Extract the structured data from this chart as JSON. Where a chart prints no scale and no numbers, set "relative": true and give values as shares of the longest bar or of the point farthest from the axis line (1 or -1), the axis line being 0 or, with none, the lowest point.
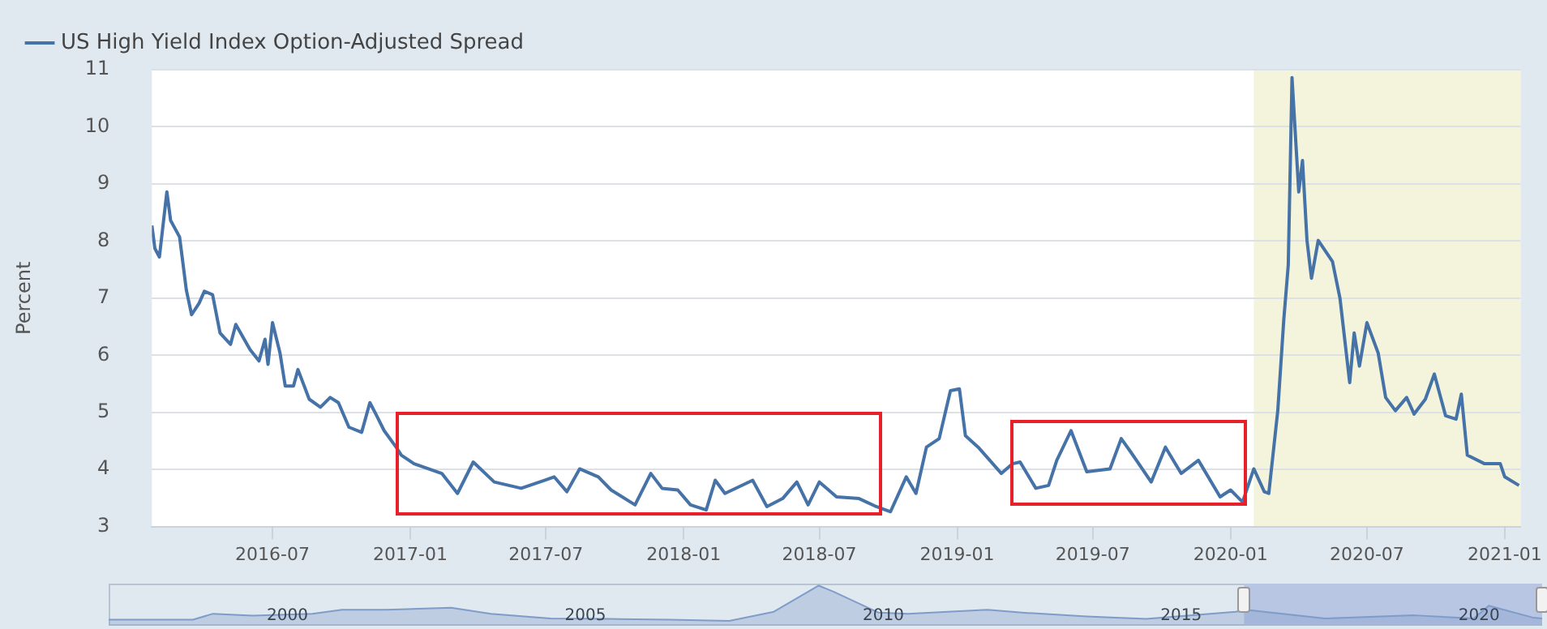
{
  "chart_data": [
    {
      "type": "line",
      "ylabel": "Percent",
      "legend": "top left",
      "grid": "y",
      "marker": "none",
      "line_style": "solid",
      "xlim": [
        "2016-01-22",
        "2021-01-22"
      ],
      "xticks": [
        "2016-07",
        "2017-01",
        "2017-07",
        "2018-01",
        "2018-07",
        "2019-01",
        "2019-07",
        "2020-01",
        "2020-07",
        "2021-01"
      ],
      "ylim": [
        3,
        11
      ],
      "yticks": [
        3,
        4,
        5,
        6,
        7,
        8,
        9,
        10,
        11
      ],
      "bands": [
        {
          "axis": "x",
          "from": "2020-02-01",
          "to": "2021-01-22",
          "color": "#f4f4dc"
        }
      ],
      "x": [
        "2016-01-22",
        "2016-01-26",
        "2016-02-01",
        "2016-02-11",
        "2016-02-16",
        "2016-02-28",
        "2016-03-08",
        "2016-03-15",
        "2016-03-25",
        "2016-04-01",
        "2016-04-12",
        "2016-04-22",
        "2016-05-06",
        "2016-05-13",
        "2016-06-01",
        "2016-06-13",
        "2016-06-21",
        "2016-06-25",
        "2016-07-01",
        "2016-07-11",
        "2016-07-18",
        "2016-07-29",
        "2016-08-04",
        "2016-08-19",
        "2016-09-03",
        "2016-09-16",
        "2016-09-27",
        "2016-10-11",
        "2016-10-28",
        "2016-11-08",
        "2016-11-16",
        "2016-11-27",
        "2016-12-13",
        "2016-12-20",
        "2017-01-06",
        "2017-02-12",
        "2017-03-05",
        "2017-03-26",
        "2017-04-23",
        "2017-05-29",
        "2017-06-29",
        "2017-07-12",
        "2017-07-29",
        "2017-08-15",
        "2017-09-09",
        "2017-09-26",
        "2017-10-28",
        "2017-11-18",
        "2017-12-03",
        "2017-12-24",
        "2018-01-10",
        "2018-01-31",
        "2018-02-12",
        "2018-02-25",
        "2018-04-03",
        "2018-04-22",
        "2018-05-13",
        "2018-06-01",
        "2018-06-16",
        "2018-07-01",
        "2018-07-24",
        "2018-08-23",
        "2018-09-15",
        "2018-10-04",
        "2018-10-25",
        "2018-11-07",
        "2018-11-21",
        "2018-12-08",
        "2018-12-23",
        "2019-01-04",
        "2019-01-12",
        "2019-01-29",
        "2019-03-01",
        "2019-03-16",
        "2019-03-26",
        "2019-04-16",
        "2019-05-03",
        "2019-05-14",
        "2019-06-02",
        "2019-06-23",
        "2019-07-24",
        "2019-08-08",
        "2019-08-21",
        "2019-09-17",
        "2019-10-06",
        "2019-10-27",
        "2019-11-19",
        "2019-12-18",
        "2020-01-01",
        "2020-01-17",
        "2020-02-01",
        "2020-02-15",
        "2020-02-21",
        "2020-03-04",
        "2020-03-12",
        "2020-03-18",
        "2020-03-23",
        "2020-04-01",
        "2020-04-06",
        "2020-04-12",
        "2020-04-18",
        "2020-04-27",
        "2020-05-16",
        "2020-05-26",
        "2020-06-08",
        "2020-06-14",
        "2020-06-21",
        "2020-07-01",
        "2020-07-16",
        "2020-07-26",
        "2020-08-08",
        "2020-08-23",
        "2020-09-02",
        "2020-09-17",
        "2020-09-29",
        "2020-10-14",
        "2020-10-28",
        "2020-11-04",
        "2020-11-12",
        "2020-12-05",
        "2020-12-26",
        "2021-01-01",
        "2021-01-20"
      ],
      "series": [
        {
          "name": "US High Yield Index Option-Adjusted Spread",
          "color": "#4572a7",
          "values": [
            8.27,
            7.87,
            7.72,
            8.86,
            8.36,
            8.07,
            7.14,
            6.71,
            6.91,
            7.12,
            7.06,
            6.39,
            6.19,
            6.54,
            6.1,
            5.9,
            6.28,
            5.84,
            6.57,
            6.04,
            5.46,
            5.46,
            5.75,
            5.23,
            5.09,
            5.26,
            5.17,
            4.74,
            4.65,
            5.17,
            4.97,
            4.68,
            4.39,
            4.25,
            4.1,
            3.93,
            3.58,
            4.13,
            3.78,
            3.67,
            3.81,
            3.87,
            3.61,
            4.01,
            3.87,
            3.64,
            3.38,
            3.93,
            3.67,
            3.64,
            3.38,
            3.29,
            3.81,
            3.58,
            3.81,
            3.35,
            3.49,
            3.78,
            3.38,
            3.78,
            3.52,
            3.49,
            3.35,
            3.26,
            3.87,
            3.58,
            4.39,
            4.54,
            5.38,
            5.41,
            4.59,
            4.39,
            3.93,
            4.1,
            4.13,
            3.67,
            3.72,
            4.16,
            4.68,
            3.96,
            4.01,
            4.54,
            4.3,
            3.78,
            4.39,
            3.93,
            4.16,
            3.52,
            3.64,
            3.43,
            4.01,
            3.61,
            3.58,
            5.03,
            6.62,
            7.58,
            10.86,
            8.86,
            9.41,
            8.01,
            7.35,
            8.01,
            7.64,
            7,
            5.52,
            6.39,
            5.81,
            6.57,
            6.04,
            5.26,
            5.03,
            5.26,
            4.97,
            5.23,
            5.67,
            4.94,
            4.88,
            5.32,
            4.25,
            4.1,
            4.1,
            3.87,
            3.72
          ]
        }
      ]
    },
    {
      "type": "area",
      "relative": true,
      "legend": false,
      "grid": false,
      "marker": "none",
      "xlim": [
        "1996-12-31",
        "2021-01-22"
      ],
      "xticks": [
        "2000",
        "2005",
        "2010",
        "2015",
        "2020"
      ],
      "bands": [
        {
          "axis": "x",
          "from": "2016-01-22",
          "to": "2021-01-22",
          "color": "#b8c6e3"
        }
      ],
      "x": [
        "1996-12-31",
        "1998-06",
        "1998-10",
        "1999-06",
        "2000-06",
        "2000-12",
        "2001-09",
        "2002-10",
        "2003-06",
        "2004-06",
        "2005-06",
        "2006-06",
        "2007-06",
        "2008-03",
        "2008-12",
        "2009-03",
        "2009-12",
        "2010-06",
        "2011-10",
        "2012-06",
        "2013-06",
        "2014-06",
        "2015-12",
        "2016-02",
        "2017-06",
        "2018-12",
        "2019-12",
        "2020-03",
        "2020-12",
        "2021-01-22"
      ],
      "series": [
        {
          "color": "#7f9cc9",
          "values": [
            0.15,
            0.15,
            0.3,
            0.25,
            0.3,
            0.4,
            0.4,
            0.45,
            0.3,
            0.18,
            0.17,
            0.15,
            0.12,
            0.35,
            1,
            0.85,
            0.33,
            0.3,
            0.4,
            0.32,
            0.23,
            0.17,
            0.35,
            0.4,
            0.18,
            0.26,
            0.18,
            0.5,
            0.2,
            0.18
          ]
        }
      ]
    }
  ]
}
